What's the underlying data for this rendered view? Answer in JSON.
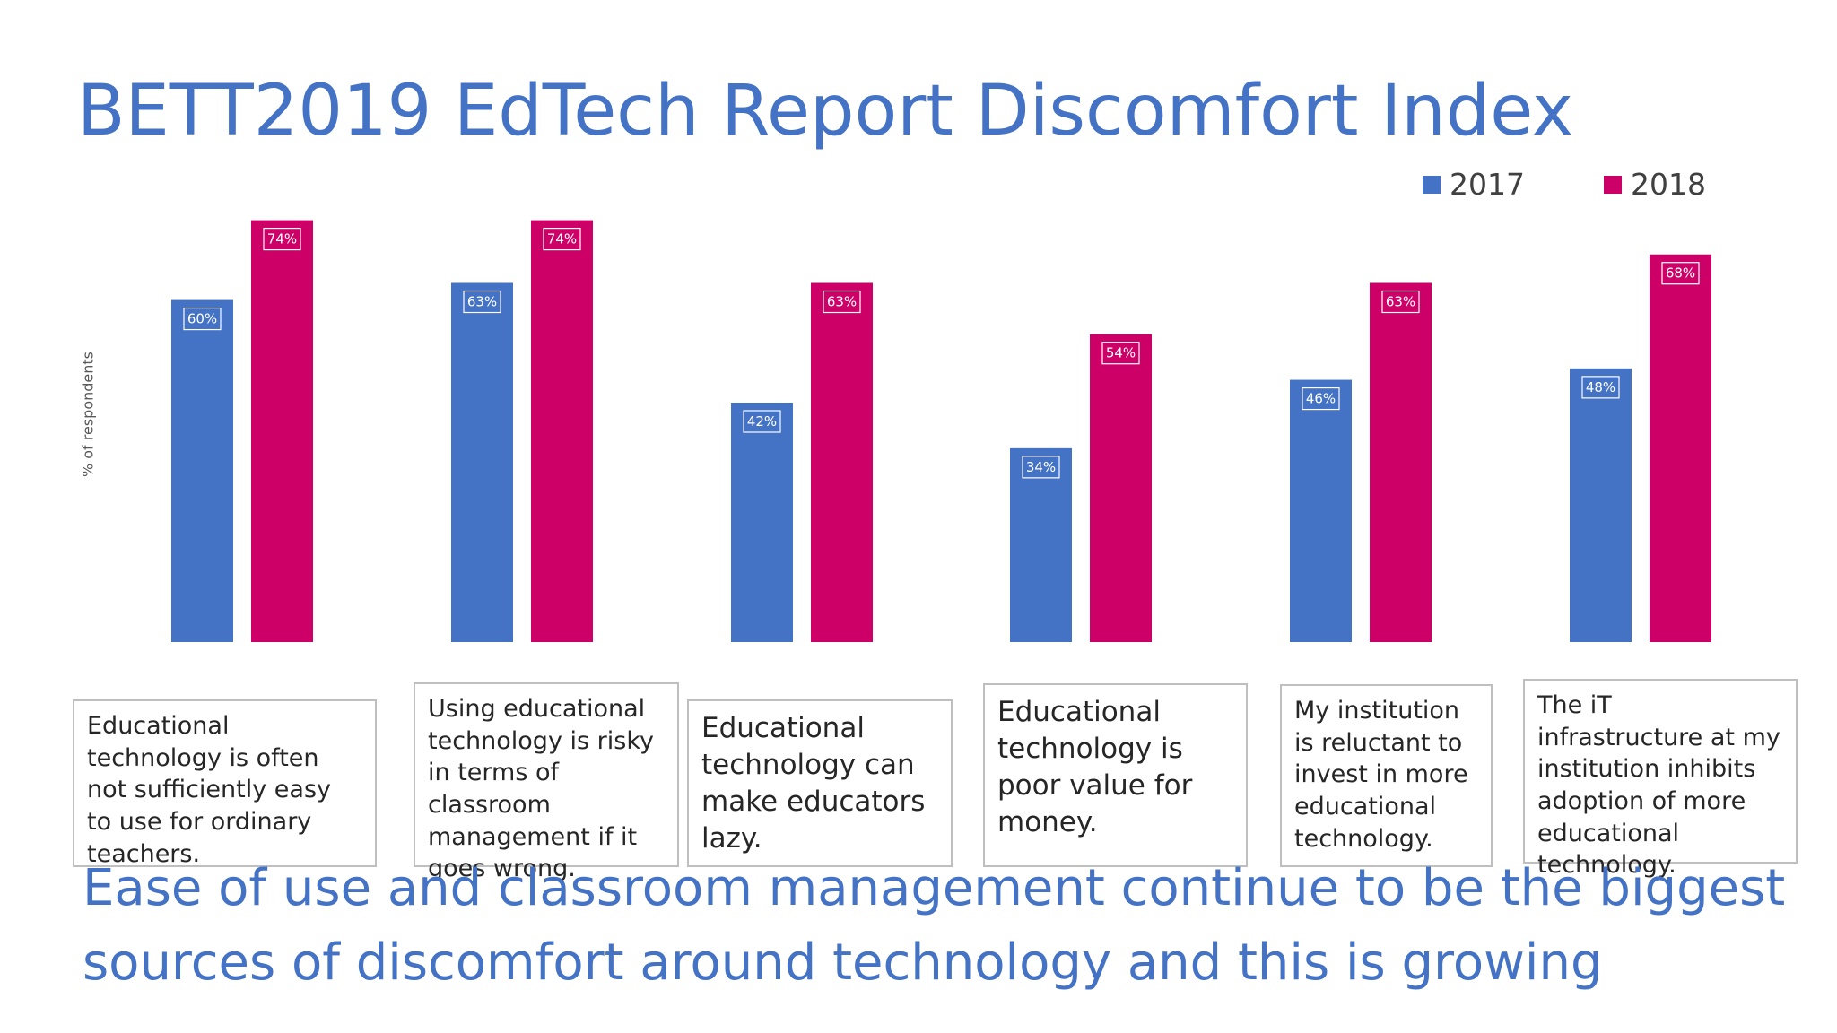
{
  "title": "BETT2019 EdTech Report Discomfort Index",
  "conclusion": "Ease of use and classroom management continue to be the biggest sources of discomfort around technology and this is growing",
  "colors": {
    "series_2017": "#4472c4",
    "series_2018": "#cc0066",
    "title": "#4472c4"
  },
  "chart_data": {
    "type": "bar",
    "title": "BETT2019 EdTech Report Discomfort Index",
    "xlabel": "",
    "ylabel": "% of respondents",
    "ylim": [
      0,
      80
    ],
    "grid": false,
    "legend_position": "top-right",
    "categories": [
      "Educational technology is often not sufficiently easy to use for ordinary teachers.",
      "Using educational technology is risky in terms of classroom management if it goes wrong.",
      "Educational technology can make educators lazy.",
      "Educational technology is poor value for money.",
      "My institution is reluctant to invest in more educational technology.",
      "The iT infrastructure at my institution inhibits adoption of more educational technology."
    ],
    "series": [
      {
        "name": "2017",
        "values": [
          60,
          63,
          42,
          34,
          46,
          48
        ],
        "labels": [
          "60%",
          "63%",
          "42%",
          "34%",
          "46%",
          "48%"
        ],
        "color": "#4472c4"
      },
      {
        "name": "2018",
        "values": [
          74,
          74,
          63,
          54,
          63,
          68
        ],
        "labels": [
          "74%",
          "74%",
          "63%",
          "54%",
          "63%",
          "68%"
        ],
        "color": "#cc0066"
      }
    ]
  }
}
